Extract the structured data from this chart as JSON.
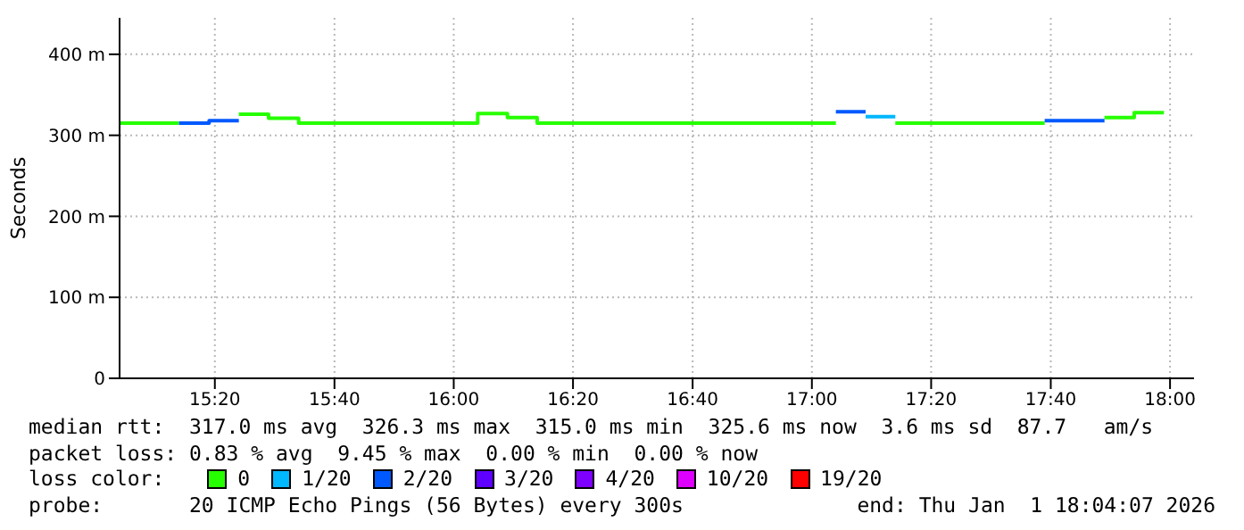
{
  "chart_data": {
    "type": "step",
    "ylabel": "Seconds",
    "xlim": [
      15.067,
      18.067
    ],
    "ylim": [
      0,
      445
    ],
    "xticks": [
      {
        "value": 15.333,
        "label": "15:20"
      },
      {
        "value": 15.667,
        "label": "15:40"
      },
      {
        "value": 16,
        "label": "16:00"
      },
      {
        "value": 16.333,
        "label": "16:20"
      },
      {
        "value": 16.667,
        "label": "16:40"
      },
      {
        "value": 17,
        "label": "17:00"
      },
      {
        "value": 17.333,
        "label": "17:20"
      },
      {
        "value": 17.667,
        "label": "17:40"
      },
      {
        "value": 18,
        "label": "18:00"
      }
    ],
    "yticks": [
      0,
      {
        "value": 100,
        "label": "100 m"
      },
      {
        "value": 200,
        "label": "200 m"
      },
      {
        "value": 300,
        "label": "300 m"
      },
      {
        "value": 400,
        "label": "400 m"
      }
    ],
    "grid": true,
    "marker": "none",
    "legend": "bottom",
    "legend_title": "loss color:",
    "x": [
      15.067,
      15.15,
      15.233,
      15.317,
      15.4,
      15.483,
      15.567,
      15.65,
      15.733,
      15.817,
      15.9,
      15.983,
      16.067,
      16.15,
      16.233,
      16.317,
      16.4,
      16.483,
      16.567,
      16.65,
      16.733,
      16.817,
      16.9,
      16.983,
      17.067,
      17.15,
      17.233,
      17.317,
      17.4,
      17.483,
      17.567,
      17.65,
      17.733,
      17.817,
      17.9,
      17.983
    ],
    "series": [
      {
        "name": "0",
        "color": "#26ff00",
        "values": [
          315,
          315,
          315,
          null,
          326,
          321,
          315,
          315,
          315,
          315,
          315,
          315,
          327,
          322,
          315,
          315,
          315,
          315,
          315,
          315,
          315,
          315,
          315,
          315,
          315,
          null,
          315,
          315,
          315,
          315,
          315,
          315,
          null,
          322,
          328,
          328
        ]
      },
      {
        "name": "1/20",
        "color": "#00b8ff",
        "values": [
          null,
          null,
          null,
          null,
          null,
          null,
          null,
          null,
          null,
          null,
          null,
          null,
          null,
          null,
          null,
          null,
          null,
          null,
          null,
          null,
          null,
          null,
          null,
          null,
          null,
          323,
          323,
          null,
          null,
          null,
          null,
          null,
          null,
          null,
          null,
          null
        ]
      },
      {
        "name": "2/20",
        "color": "#0059ff",
        "values": [
          null,
          null,
          315,
          318,
          318,
          null,
          null,
          null,
          null,
          null,
          null,
          null,
          null,
          null,
          null,
          null,
          null,
          null,
          null,
          null,
          null,
          null,
          null,
          null,
          329,
          329,
          null,
          null,
          null,
          null,
          null,
          318,
          318,
          318,
          null,
          null
        ]
      },
      {
        "name": "3/20",
        "color": "#5e00ff",
        "values": [
          null,
          null,
          null,
          null,
          null,
          null,
          null,
          null,
          null,
          null,
          null,
          null,
          null,
          null,
          null,
          null,
          null,
          null,
          null,
          null,
          null,
          null,
          null,
          null,
          null,
          null,
          null,
          null,
          null,
          null,
          null,
          null,
          null,
          null,
          null,
          null
        ]
      },
      {
        "name": "4/20",
        "color": "#7e00ff",
        "values": [
          null,
          null,
          null,
          null,
          null,
          null,
          null,
          null,
          null,
          null,
          null,
          null,
          null,
          null,
          null,
          null,
          null,
          null,
          null,
          null,
          null,
          null,
          null,
          null,
          null,
          null,
          null,
          null,
          null,
          null,
          null,
          null,
          null,
          null,
          null,
          null
        ]
      },
      {
        "name": "10/20",
        "color": "#dd00ff",
        "values": [
          null,
          null,
          null,
          null,
          null,
          null,
          null,
          null,
          null,
          null,
          null,
          null,
          null,
          null,
          null,
          null,
          null,
          null,
          null,
          null,
          null,
          null,
          null,
          null,
          null,
          null,
          null,
          null,
          null,
          null,
          null,
          null,
          null,
          null,
          null,
          null
        ]
      },
      {
        "name": "19/20",
        "color": "#ff0000",
        "values": [
          null,
          null,
          null,
          null,
          null,
          null,
          null,
          null,
          null,
          null,
          null,
          null,
          null,
          null,
          null,
          null,
          null,
          null,
          null,
          null,
          null,
          null,
          null,
          null,
          null,
          null,
          null,
          null,
          null,
          null,
          null,
          null,
          null,
          null,
          null,
          null
        ]
      }
    ],
    "annotations": [
      "median rtt:  317.0 ms avg  326.3 ms max  315.0 ms min  325.6 ms now  3.6 ms sd  87.7   am/s",
      "packet loss: 0.83 % avg  9.45 % max  0.00 % min  0.00 % now",
      "probe:       20 ICMP Echo Pings (56 Bytes) every 300s",
      "end: Thu Jan  1 18:04:07 2026"
    ]
  }
}
